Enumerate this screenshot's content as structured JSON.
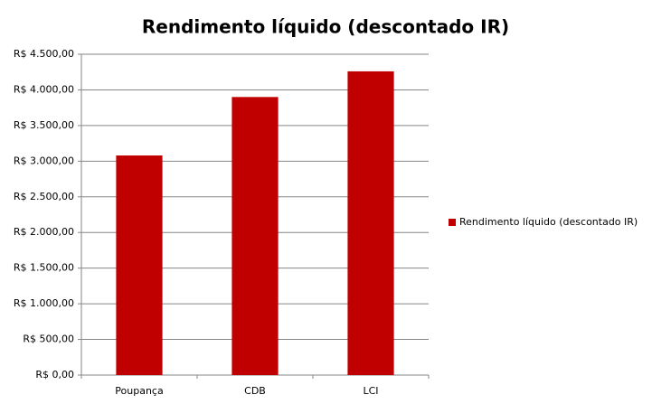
{
  "chart_data": {
    "type": "bar",
    "title": "Rendimento líquido (descontado IR)",
    "categories": [
      "Poupança",
      "CDB",
      "LCI"
    ],
    "series": [
      {
        "name": "Rendimento líquido (descontado IR)",
        "color": "#c00000",
        "values": [
          3080,
          3900,
          4260
        ]
      }
    ],
    "ylim": [
      0,
      4500
    ],
    "yticks": [
      {
        "value": 0,
        "label": "R$ 0,00"
      },
      {
        "value": 500,
        "label": "R$ 500,00"
      },
      {
        "value": 1000,
        "label": "R$ 1.000,00"
      },
      {
        "value": 1500,
        "label": "R$ 1.500,00"
      },
      {
        "value": 2000,
        "label": "R$ 2.000,00"
      },
      {
        "value": 2500,
        "label": "R$ 2.500,00"
      },
      {
        "value": 3000,
        "label": "R$ 3.000,00"
      },
      {
        "value": 3500,
        "label": "R$ 3.500,00"
      },
      {
        "value": 4000,
        "label": "R$ 4.000,00"
      },
      {
        "value": 4500,
        "label": "R$ 4.500,00"
      }
    ],
    "grid": true,
    "legend": "right"
  }
}
